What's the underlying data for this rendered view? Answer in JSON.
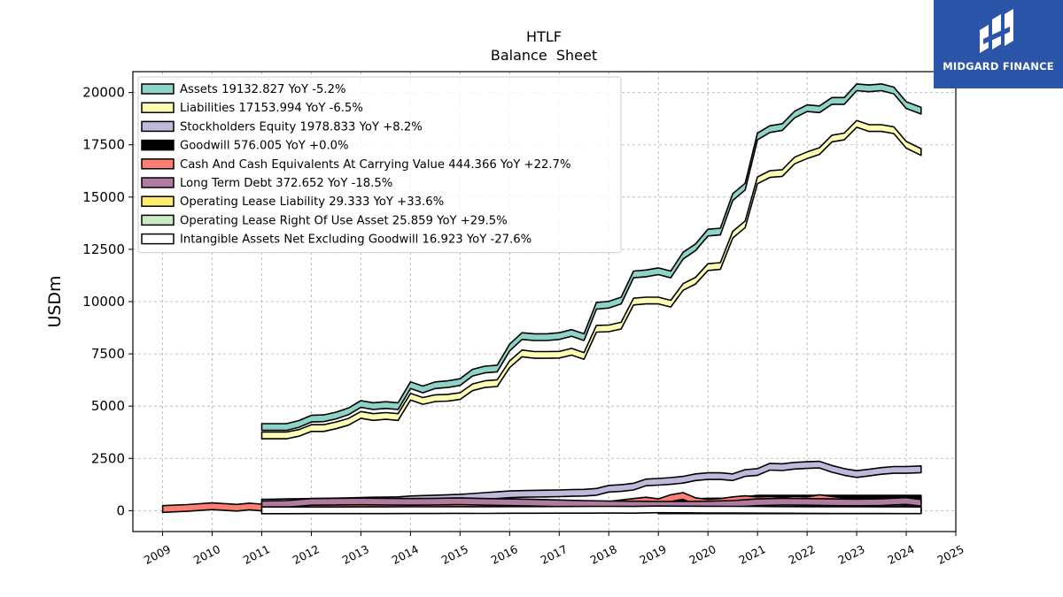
{
  "brand": {
    "name": "MIDGARD FINANCE",
    "color": "#2a55a8"
  },
  "chart_data": {
    "type": "area",
    "title": "HTLF",
    "subtitle": "Balance  Sheet",
    "xlabel": "",
    "ylabel": "USDm",
    "xlim": [
      2008.4,
      2025.0
    ],
    "ylim": [
      -1000,
      21000
    ],
    "x_ticks": [
      2009,
      2010,
      2011,
      2012,
      2013,
      2014,
      2015,
      2016,
      2017,
      2018,
      2019,
      2020,
      2021,
      2022,
      2023,
      2024,
      2025
    ],
    "x_tick_labels": [
      "2009",
      "2010",
      "2011",
      "2012",
      "2013",
      "2014",
      "2015",
      "2016",
      "2017",
      "2018",
      "2019",
      "2020",
      "2021",
      "2022",
      "2023",
      "2024",
      "2025"
    ],
    "y_ticks": [
      0,
      2500,
      5000,
      7500,
      10000,
      12500,
      15000,
      17500,
      20000
    ],
    "y_tick_labels": [
      "0",
      "2500",
      "5000",
      "7500",
      "10000",
      "12500",
      "15000",
      "17500",
      "20000"
    ],
    "grid": true,
    "legend_position": "top-left",
    "series": [
      {
        "name": "Assets",
        "legend": "Assets  19132.827 YoY -5.2%",
        "color": "#8dd3c7",
        "x": [
          2011.0,
          2011.25,
          2011.5,
          2011.75,
          2012.0,
          2012.25,
          2012.5,
          2012.75,
          2013.0,
          2013.25,
          2013.5,
          2013.75,
          2014.0,
          2014.25,
          2014.5,
          2014.75,
          2015.0,
          2015.25,
          2015.5,
          2015.75,
          2016.0,
          2016.25,
          2016.5,
          2016.75,
          2017.0,
          2017.25,
          2017.5,
          2017.75,
          2018.0,
          2018.25,
          2018.5,
          2018.75,
          2019.0,
          2019.25,
          2019.5,
          2019.75,
          2020.0,
          2020.25,
          2020.5,
          2020.75,
          2021.0,
          2021.25,
          2021.5,
          2021.75,
          2022.0,
          2022.25,
          2022.5,
          2022.75,
          2023.0,
          2023.25,
          2023.5,
          2023.75,
          2024.0,
          2024.3
        ],
        "y": [
          4000,
          4000,
          4000,
          4150,
          4400,
          4420,
          4550,
          4750,
          5100,
          5000,
          5050,
          5000,
          6000,
          5800,
          6000,
          6050,
          6150,
          6600,
          6750,
          6800,
          7800,
          8350,
          8300,
          8300,
          8350,
          8500,
          8300,
          9800,
          9850,
          10050,
          11300,
          11350,
          11450,
          11300,
          12200,
          12600,
          13300,
          13350,
          15000,
          15500,
          17900,
          18250,
          18350,
          18950,
          19250,
          19200,
          19600,
          19600,
          20250,
          20200,
          20250,
          20100,
          19400,
          19132.827
        ]
      },
      {
        "name": "Liabilities",
        "legend": "Liabilities  17153.994 YoY -6.5%",
        "color": "#ffffb3",
        "x": [
          2011.0,
          2011.25,
          2011.5,
          2011.75,
          2012.0,
          2012.25,
          2012.5,
          2012.75,
          2013.0,
          2013.25,
          2013.5,
          2013.75,
          2014.0,
          2014.25,
          2014.5,
          2014.75,
          2015.0,
          2015.25,
          2015.5,
          2015.75,
          2016.0,
          2016.25,
          2016.5,
          2016.75,
          2017.0,
          2017.25,
          2017.5,
          2017.75,
          2018.0,
          2018.25,
          2018.5,
          2018.75,
          2019.0,
          2019.25,
          2019.5,
          2019.75,
          2020.0,
          2020.25,
          2020.5,
          2020.75,
          2021.0,
          2021.25,
          2021.5,
          2021.75,
          2022.0,
          2022.25,
          2022.5,
          2022.75,
          2023.0,
          2023.25,
          2023.5,
          2023.75,
          2024.0,
          2024.3
        ],
        "y": [
          3600,
          3600,
          3600,
          3720,
          3950,
          3950,
          4080,
          4250,
          4580,
          4480,
          4530,
          4480,
          5450,
          5250,
          5380,
          5400,
          5480,
          5900,
          6050,
          6100,
          7000,
          7520,
          7450,
          7450,
          7460,
          7600,
          7400,
          8700,
          8720,
          8850,
          10000,
          10050,
          10050,
          9900,
          10700,
          11000,
          11650,
          11700,
          13200,
          13700,
          15800,
          16100,
          16150,
          16750,
          17000,
          17200,
          17800,
          17900,
          18500,
          18300,
          18300,
          18200,
          17500,
          17153.994
        ]
      },
      {
        "name": "Stockholders Equity",
        "legend": "Stockholders Equity  1978.833 YoY +8.2%",
        "color": "#bebada",
        "x": [
          2011.0,
          2011.25,
          2011.5,
          2011.75,
          2012.0,
          2012.25,
          2012.5,
          2012.75,
          2013.0,
          2013.25,
          2013.5,
          2013.75,
          2014.0,
          2014.25,
          2014.5,
          2014.75,
          2015.0,
          2015.25,
          2015.5,
          2015.75,
          2016.0,
          2016.25,
          2016.5,
          2016.75,
          2017.0,
          2017.25,
          2017.5,
          2017.75,
          2018.0,
          2018.25,
          2018.5,
          2018.75,
          2019.0,
          2019.25,
          2019.5,
          2019.75,
          2020.0,
          2020.25,
          2020.5,
          2020.75,
          2021.0,
          2021.25,
          2021.5,
          2021.75,
          2022.0,
          2022.25,
          2022.5,
          2022.75,
          2023.0,
          2023.25,
          2023.5,
          2023.75,
          2024.0,
          2024.3
        ],
        "y": [
          380,
          390,
          400,
          410,
          420,
          430,
          440,
          450,
          470,
          480,
          490,
          500,
          540,
          560,
          580,
          600,
          620,
          660,
          700,
          740,
          780,
          800,
          810,
          820,
          830,
          850,
          860,
          900,
          1050,
          1080,
          1150,
          1350,
          1380,
          1420,
          1480,
          1600,
          1650,
          1650,
          1600,
          1800,
          1850,
          2100,
          2080,
          2150,
          2180,
          2200,
          2000,
          1850,
          1750,
          1820,
          1900,
          1950,
          1950,
          1978.833
        ]
      },
      {
        "name": "Goodwill",
        "legend": "Goodwill  576.005 YoY +0.0%",
        "color": "#000000",
        "x": [
          2011.0,
          2011.5,
          2012.0,
          2012.5,
          2013.0,
          2013.5,
          2014.0,
          2014.5,
          2015.0,
          2015.5,
          2016.0,
          2016.5,
          2017.0,
          2017.5,
          2018.0,
          2018.5,
          2019.0,
          2019.5,
          2020.0,
          2020.5,
          2021.0,
          2021.5,
          2022.0,
          2022.5,
          2023.0,
          2023.5,
          2024.0,
          2024.3
        ],
        "y": [
          90,
          90,
          100,
          105,
          110,
          110,
          120,
          125,
          130,
          130,
          140,
          160,
          170,
          200,
          240,
          280,
          300,
          380,
          430,
          440,
          576,
          576,
          576,
          576,
          576,
          576,
          576,
          576.005
        ]
      },
      {
        "name": "Cash And Cash Equivalents At Carrying Value",
        "legend": "Cash And Cash Equivalents At Carrying Value  444.366 YoY +22.7%",
        "color": "#fb8072",
        "x": [
          2009.0,
          2009.5,
          2010.0,
          2010.5,
          2010.75,
          2011.0,
          2011.25,
          2011.5,
          2011.75,
          2012.0,
          2012.5,
          2013.0,
          2013.5,
          2014.0,
          2014.5,
          2015.0,
          2015.5,
          2016.0,
          2016.5,
          2017.0,
          2017.5,
          2018.0,
          2018.25,
          2018.5,
          2018.75,
          2019.0,
          2019.25,
          2019.5,
          2019.75,
          2020.0,
          2020.25,
          2020.5,
          2020.75,
          2021.0,
          2021.25,
          2021.5,
          2021.75,
          2022.0,
          2022.25,
          2022.5,
          2022.75,
          2023.0,
          2023.25,
          2023.5,
          2023.75,
          2024.0,
          2024.3
        ],
        "y": [
          80,
          130,
          210,
          140,
          200,
          150,
          170,
          240,
          180,
          250,
          260,
          280,
          220,
          240,
          250,
          260,
          230,
          240,
          250,
          270,
          260,
          280,
          350,
          420,
          480,
          400,
          600,
          700,
          450,
          380,
          420,
          500,
          550,
          500,
          520,
          480,
          530,
          500,
          600,
          520,
          450,
          420,
          380,
          400,
          430,
          420,
          444.366
        ]
      },
      {
        "name": "Long Term Debt",
        "legend": "Long Term Debt  372.652 YoY -18.5%",
        "color": "#b07aa1",
        "x": [
          2011.0,
          2011.5,
          2012.0,
          2012.5,
          2013.0,
          2013.5,
          2014.0,
          2014.5,
          2015.0,
          2015.5,
          2016.0,
          2016.5,
          2017.0,
          2017.5,
          2018.0,
          2018.5,
          2019.0,
          2019.5,
          2020.0,
          2020.5,
          2021.0,
          2021.5,
          2022.0,
          2022.5,
          2023.0,
          2023.5,
          2024.0,
          2024.3
        ],
        "y": [
          300,
          320,
          420,
          430,
          440,
          430,
          420,
          430,
          450,
          420,
          400,
          380,
          350,
          320,
          300,
          290,
          280,
          280,
          290,
          320,
          400,
          430,
          420,
          400,
          390,
          410,
          460,
          372.652
        ]
      },
      {
        "name": "Operating Lease Liability",
        "legend": "Operating Lease Liability  29.333 YoY +33.6%",
        "color": "#ffed6f",
        "x": [
          2019.0,
          2019.5,
          2020.0,
          2020.5,
          2021.0,
          2021.5,
          2022.0,
          2022.5,
          2023.0,
          2023.5,
          2024.0,
          2024.3
        ],
        "y": [
          25,
          24,
          23,
          22,
          22,
          21,
          21,
          22,
          22,
          22,
          22,
          29.333
        ]
      },
      {
        "name": "Operating Lease Right Of Use Asset",
        "legend": "Operating Lease Right Of Use Asset  25.859 YoY +29.5%",
        "color": "#ccebc5",
        "x": [
          2019.0,
          2019.5,
          2020.0,
          2020.5,
          2021.0,
          2021.5,
          2022.0,
          2022.5,
          2023.0,
          2023.5,
          2024.0,
          2024.3
        ],
        "y": [
          22,
          21,
          20,
          20,
          19,
          19,
          19,
          20,
          20,
          20,
          20,
          25.859
        ]
      },
      {
        "name": "Intangible Assets Net Excluding Goodwill",
        "legend": "Intangible Assets Net Excluding Goodwill  16.923 YoY -27.6%",
        "color": "#ffffff",
        "x": [
          2011.0,
          2011.5,
          2012.0,
          2012.5,
          2013.0,
          2013.5,
          2014.0,
          2014.5,
          2015.0,
          2015.5,
          2016.0,
          2016.5,
          2017.0,
          2017.5,
          2018.0,
          2018.5,
          2019.0,
          2019.5,
          2020.0,
          2020.5,
          2021.0,
          2021.5,
          2022.0,
          2022.5,
          2023.0,
          2023.5,
          2024.0,
          2024.3
        ],
        "y": [
          15,
          15,
          18,
          18,
          20,
          20,
          25,
          24,
          30,
          28,
          35,
          35,
          38,
          40,
          45,
          42,
          60,
          55,
          50,
          45,
          40,
          35,
          30,
          28,
          25,
          22,
          20,
          16.923
        ]
      }
    ]
  }
}
